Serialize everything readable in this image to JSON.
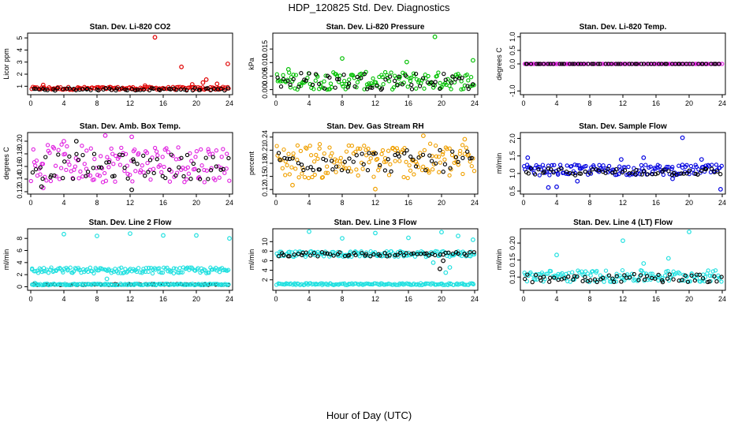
{
  "title": "HDP_120825  Std. Dev. Diagnostics",
  "xlabel": "Hour of Day (UTC)",
  "chart_data": [
    {
      "type": "scatter",
      "title": "Stan. Dev. Li-820 CO2",
      "ylabel": "Licor ppm",
      "xlim": [
        0,
        24
      ],
      "ylim": [
        0.5,
        5.2
      ],
      "xticks": [
        0,
        4,
        8,
        12,
        16,
        20,
        24
      ],
      "yticks": [
        1,
        2,
        3,
        4,
        5
      ],
      "series": [
        {
          "color": "#e00000",
          "band": [
            0.7,
            0.95
          ],
          "points": [
            [
              15.0,
              5.05
            ],
            [
              18.2,
              2.6
            ],
            [
              23.8,
              2.85
            ],
            [
              21.2,
              1.55
            ],
            [
              20.8,
              1.3
            ],
            [
              19.5,
              1.15
            ],
            [
              1.5,
              1.1
            ],
            [
              13.8,
              1.05
            ],
            [
              22.5,
              1.2
            ]
          ]
        },
        {
          "color": "#000000",
          "band": [
            0.65,
            0.85
          ],
          "points": []
        }
      ]
    },
    {
      "type": "scatter",
      "title": "Stan. Dev. Li-820 Pressure",
      "ylabel": "kPa",
      "xlim": [
        0,
        24
      ],
      "ylim": [
        -0.001,
        0.02
      ],
      "xticks": [
        0,
        4,
        8,
        12,
        16,
        20,
        24
      ],
      "yticks": [
        0.0,
        0.005,
        0.01,
        0.015
      ],
      "ytick_labels": [
        "0.000",
        "0.005",
        "0.010",
        "0.015"
      ],
      "series": [
        {
          "color": "#00c000",
          "band": [
            0.0,
            0.0065
          ],
          "points": [
            [
              19.2,
              0.0195
            ],
            [
              8.0,
              0.0115
            ],
            [
              15.8,
              0.0102
            ],
            [
              23.8,
              0.0108
            ],
            [
              1.5,
              0.0075
            ]
          ]
        },
        {
          "color": "#000000",
          "band": [
            0.0,
            0.0065
          ],
          "points": []
        }
      ]
    },
    {
      "type": "scatter",
      "title": "Stan. Dev. Li-820 Temp.",
      "ylabel": "degrees C",
      "xlim": [
        0,
        24
      ],
      "ylim": [
        -1.05,
        1.05
      ],
      "xticks": [
        0,
        4,
        8,
        12,
        16,
        20,
        24
      ],
      "yticks": [
        -1.0,
        0.0,
        0.5,
        1.0
      ],
      "ytick_labels": [
        "-1.0",
        "0.0",
        "0.5",
        "1.0"
      ],
      "series": [
        {
          "color": "#e020e0",
          "band": [
            0.0,
            0.0
          ],
          "points": []
        },
        {
          "color": "#000000",
          "band": [
            0.0,
            0.0
          ],
          "points": []
        }
      ]
    },
    {
      "type": "scatter",
      "title": "Stan. Dev. Amb. Box Temp.",
      "ylabel": "degrees C",
      "xlim": [
        0,
        24
      ],
      "ylim": [
        0.12,
        0.21
      ],
      "xticks": [
        0,
        4,
        8,
        12,
        16,
        20,
        24
      ],
      "yticks": [
        0.12,
        0.14,
        0.16,
        0.18,
        0.2
      ],
      "ytick_labels": [
        "0.12",
        "0.14",
        "0.16",
        "0.18",
        "0.20"
      ],
      "series": [
        {
          "color": "#e020e0",
          "band": [
            0.135,
            0.195
          ],
          "points": [
            [
              9.0,
              0.209
            ],
            [
              12.2,
              0.207
            ],
            [
              4.0,
              0.2
            ],
            [
              1.5,
              0.126
            ]
          ]
        },
        {
          "color": "#000000",
          "band": [
            0.14,
            0.18
          ],
          "points": [
            [
              12.2,
              0.123
            ],
            [
              5.5,
              0.2
            ],
            [
              1.3,
              0.128
            ]
          ]
        }
      ]
    },
    {
      "type": "scatter",
      "title": "Stan. Dev. Gas Stream RH",
      "ylabel": "percent",
      "xlim": [
        0,
        24
      ],
      "ylim": [
        0.115,
        0.245
      ],
      "xticks": [
        0,
        4,
        8,
        12,
        16,
        20,
        24
      ],
      "yticks": [
        0.12,
        0.15,
        0.18,
        0.21,
        0.24
      ],
      "ytick_labels": [
        "0.12",
        "0.15",
        "0.18",
        "0.21",
        "0.24"
      ],
      "series": [
        {
          "color": "#f0a000",
          "band": [
            0.145,
            0.225
          ],
          "points": [
            [
              17.8,
              0.243
            ],
            [
              22.8,
              0.235
            ],
            [
              12.0,
              0.121
            ],
            [
              2.0,
              0.13
            ]
          ]
        },
        {
          "color": "#000000",
          "band": [
            0.16,
            0.21
          ],
          "points": []
        }
      ]
    },
    {
      "type": "scatter",
      "title": "Stan. Dev. Sample Flow",
      "ylabel": "ml/min",
      "xlim": [
        0,
        24
      ],
      "ylim": [
        0.48,
        2.1
      ],
      "xticks": [
        0,
        4,
        8,
        12,
        16,
        20,
        24
      ],
      "yticks": [
        0.5,
        1.0,
        1.5,
        2.0
      ],
      "ytick_labels": [
        "0.5",
        "1.0",
        "1.5",
        "2.0"
      ],
      "series": [
        {
          "color": "#0000e0",
          "band": [
            0.95,
            1.25
          ],
          "points": [
            [
              19.2,
              2.02
            ],
            [
              23.8,
              0.55
            ],
            [
              0.5,
              1.45
            ],
            [
              4.0,
              0.62
            ],
            [
              3.0,
              0.6
            ],
            [
              14.5,
              1.45
            ],
            [
              11.8,
              1.4
            ],
            [
              6.5,
              0.78
            ],
            [
              18.0,
              0.85
            ],
            [
              21.5,
              1.4
            ]
          ]
        },
        {
          "color": "#000000",
          "band": [
            0.95,
            1.15
          ],
          "points": []
        }
      ]
    },
    {
      "type": "scatter",
      "title": "Stan. Dev. Line 2 Flow",
      "ylabel": "ml/min",
      "xlim": [
        0,
        24
      ],
      "ylim": [
        -0.2,
        9.2
      ],
      "xticks": [
        0,
        4,
        8,
        12,
        16,
        20,
        24
      ],
      "yticks": [
        0,
        2,
        4,
        6,
        8
      ],
      "series": [
        {
          "color": "#20e0e0",
          "band": [
            2.2,
            3.2
          ],
          "points": [
            [
              4.0,
              8.7
            ],
            [
              8.0,
              8.4
            ],
            [
              12.0,
              8.8
            ],
            [
              16.0,
              8.5
            ],
            [
              20.0,
              8.5
            ],
            [
              24.0,
              8.0
            ],
            [
              9.2,
              1.3
            ],
            [
              0.5,
              0.6
            ]
          ]
        },
        {
          "color": "#000000",
          "band": [
            0.3,
            0.45
          ],
          "points": []
        },
        {
          "color": "#20e0e0",
          "band": [
            0.25,
            0.5
          ],
          "points": []
        }
      ]
    },
    {
      "type": "scatter",
      "title": "Stan. Dev. Line 3 Flow",
      "ylabel": "ml/min",
      "xlim": [
        0,
        24
      ],
      "ylim": [
        0.3,
        12.2
      ],
      "xticks": [
        0,
        4,
        8,
        12,
        16,
        20,
        24
      ],
      "yticks": [
        2,
        4,
        6,
        8,
        10
      ],
      "series": [
        {
          "color": "#20e0e0",
          "band": [
            6.8,
            8.0
          ],
          "points": [
            [
              4.0,
              12.1
            ],
            [
              8.0,
              10.7
            ],
            [
              12.0,
              11.8
            ],
            [
              16.0,
              10.8
            ],
            [
              20.0,
              12.0
            ],
            [
              23.8,
              10.4
            ],
            [
              22.0,
              11.2
            ],
            [
              19.0,
              5.6
            ],
            [
              20.5,
              3.5
            ],
            [
              21.0,
              4.6
            ]
          ]
        },
        {
          "color": "#000000",
          "band": [
            6.9,
            7.8
          ],
          "points": [
            [
              19.8,
              4.3
            ],
            [
              20.2,
              6.0
            ]
          ]
        },
        {
          "color": "#20e0e0",
          "band": [
            0.9,
            1.3
          ],
          "points": []
        }
      ]
    },
    {
      "type": "scatter",
      "title": "Stan. Dev. Line 4 (LT) Flow",
      "ylabel": "ml/min",
      "xlim": [
        0,
        24
      ],
      "ylim": [
        0.068,
        0.235
      ],
      "xticks": [
        0,
        4,
        8,
        12,
        16,
        20,
        24
      ],
      "yticks": [
        0.1,
        0.15,
        0.2
      ],
      "ytick_labels": [
        "0.10",
        "0.15",
        "0.20"
      ],
      "series": [
        {
          "color": "#20e0e0",
          "band": [
            0.085,
            0.12
          ],
          "points": [
            [
              20.0,
              0.233
            ],
            [
              12.0,
              0.207
            ],
            [
              4.0,
              0.165
            ],
            [
              17.5,
              0.155
            ],
            [
              14.5,
              0.14
            ]
          ]
        },
        {
          "color": "#000000",
          "band": [
            0.085,
            0.11
          ],
          "points": []
        }
      ]
    }
  ]
}
